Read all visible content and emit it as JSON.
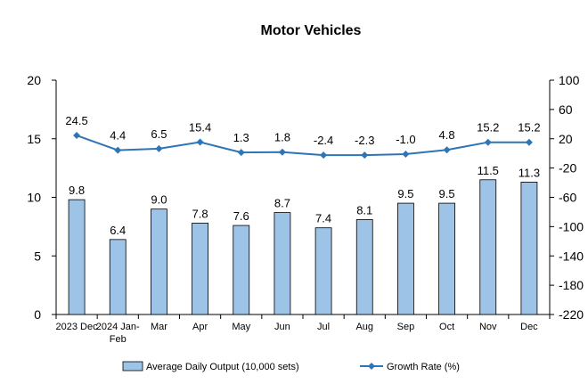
{
  "chart_data": {
    "type": "bar+line",
    "title": "Motor Vehicles",
    "categories": [
      "2023 Dec",
      "2024 Jan-Feb",
      "Mar",
      "Apr",
      "May",
      "Jun",
      "Jul",
      "Aug",
      "Sep",
      "Oct",
      "Nov",
      "Dec"
    ],
    "category_lines": [
      [
        "2023 Dec"
      ],
      [
        "2024 Jan-",
        "Feb"
      ],
      [
        "Mar"
      ],
      [
        "Apr"
      ],
      [
        "May"
      ],
      [
        "Jun"
      ],
      [
        "Jul"
      ],
      [
        "Aug"
      ],
      [
        "Sep"
      ],
      [
        "Oct"
      ],
      [
        "Nov"
      ],
      [
        "Dec"
      ]
    ],
    "series": [
      {
        "name": "Average Daily Output (10,000 sets)",
        "type": "bar",
        "axis": "left",
        "values": [
          9.8,
          6.4,
          9.0,
          7.8,
          7.6,
          8.7,
          7.4,
          8.1,
          9.5,
          9.5,
          11.5,
          11.3
        ],
        "labels": [
          "9.8",
          "6.4",
          "9.0",
          "7.8",
          "7.6",
          "8.7",
          "7.4",
          "8.1",
          "9.5",
          "9.5",
          "11.5",
          "11.3"
        ],
        "color": "#9DC3E6",
        "border": "#000000"
      },
      {
        "name": "Growth Rate (%)",
        "type": "line",
        "axis": "right",
        "values": [
          24.5,
          4.4,
          6.5,
          15.4,
          1.3,
          1.8,
          -2.4,
          -2.3,
          -1.0,
          4.8,
          15.2,
          15.2
        ],
        "labels": [
          "24.5",
          "4.4",
          "6.5",
          "15.4",
          "1.3",
          "1.8",
          "-2.4",
          "-2.3",
          "-1.0",
          "4.8",
          "15.2",
          "15.2"
        ],
        "color": "#2E75B6"
      }
    ],
    "y_left": {
      "min": 0,
      "max": 20,
      "ticks": [
        "0",
        "5",
        "10",
        "15",
        "20"
      ],
      "tick_values": [
        0,
        5,
        10,
        15,
        20
      ]
    },
    "y_right": {
      "min": -220,
      "max": 100,
      "ticks": [
        "-220",
        "-180",
        "-140",
        "-100",
        "-60",
        "-20",
        "20",
        "60",
        "100"
      ],
      "tick_values": [
        -220,
        -180,
        -140,
        -100,
        -60,
        -20,
        20,
        60,
        100
      ]
    },
    "grid": false,
    "legend_position": "bottom"
  }
}
